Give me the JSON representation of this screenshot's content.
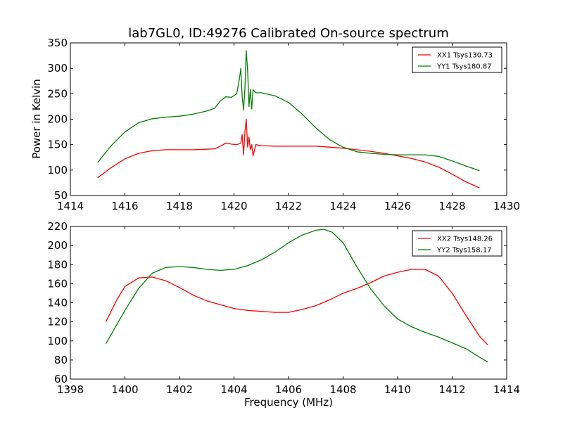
{
  "figure": {
    "title": "lab7GL0, ID:49276 Calibrated On-source spectrum",
    "ylabel": "Power in Kelvin",
    "xlabel": "Frequency (MHz)"
  },
  "chart_data": [
    {
      "type": "line",
      "xlim": [
        1414,
        1430
      ],
      "ylim": [
        50,
        350
      ],
      "xticks": [
        1414,
        1416,
        1418,
        1420,
        1422,
        1424,
        1426,
        1428,
        1430
      ],
      "yticks": [
        50,
        100,
        150,
        200,
        250,
        300,
        350
      ],
      "legend_position": "top-right",
      "grid": false,
      "series": [
        {
          "name": "XX1 Tsys130.73",
          "color": "#ff0000",
          "x": [
            1415,
            1415.5,
            1416,
            1416.5,
            1417,
            1417.5,
            1418,
            1418.5,
            1419,
            1419.3,
            1419.5,
            1419.7,
            1419.9,
            1420.1,
            1420.25,
            1420.3,
            1420.35,
            1420.4,
            1420.45,
            1420.5,
            1420.55,
            1420.6,
            1420.65,
            1420.7,
            1420.8,
            1421,
            1421.5,
            1422,
            1423,
            1424,
            1424.5,
            1425,
            1425.5,
            1426,
            1426.5,
            1427,
            1427.5,
            1428,
            1428.5,
            1429
          ],
          "y": [
            85,
            105,
            122,
            133,
            138,
            140,
            140,
            140,
            141,
            142,
            147,
            153,
            151,
            150,
            153,
            170,
            130,
            175,
            200,
            145,
            165,
            140,
            150,
            128,
            150,
            148,
            147,
            147,
            147,
            143,
            140,
            137,
            133,
            128,
            123,
            116,
            106,
            92,
            77,
            65
          ]
        },
        {
          "name": "YY1 Tsys180.87",
          "color": "#008000",
          "x": [
            1415,
            1415.5,
            1416,
            1416.5,
            1417,
            1417.5,
            1418,
            1418.5,
            1419,
            1419.3,
            1419.5,
            1419.7,
            1419.9,
            1420.1,
            1420.2,
            1420.25,
            1420.3,
            1420.35,
            1420.4,
            1420.45,
            1420.5,
            1420.55,
            1420.6,
            1420.65,
            1420.7,
            1420.8,
            1421,
            1421.5,
            1422,
            1422.5,
            1423,
            1423.5,
            1424,
            1424.5,
            1425,
            1425.5,
            1426,
            1426.5,
            1427,
            1427.5,
            1428,
            1428.5,
            1429
          ],
          "y": [
            115,
            148,
            175,
            193,
            201,
            204,
            206,
            210,
            216,
            222,
            236,
            244,
            243,
            250,
            280,
            300,
            245,
            218,
            260,
            335,
            295,
            225,
            258,
            220,
            258,
            252,
            252,
            246,
            233,
            210,
            183,
            160,
            145,
            136,
            133,
            131,
            130,
            130,
            130,
            127,
            118,
            108,
            99
          ]
        }
      ]
    },
    {
      "type": "line",
      "xlim": [
        1398,
        1414
      ],
      "ylim": [
        60,
        220
      ],
      "xticks": [
        1398,
        1400,
        1402,
        1404,
        1406,
        1408,
        1410,
        1412,
        1414
      ],
      "yticks": [
        60,
        80,
        100,
        120,
        140,
        160,
        180,
        200,
        220
      ],
      "legend_position": "top-right",
      "grid": false,
      "series": [
        {
          "name": "XX2 Tsys148.26",
          "color": "#ff0000",
          "x": [
            1399.3,
            1399.7,
            1400,
            1400.5,
            1401,
            1401.5,
            1402,
            1402.5,
            1403,
            1403.5,
            1404,
            1404.5,
            1405,
            1405.5,
            1406,
            1406.5,
            1407,
            1407.5,
            1408,
            1408.5,
            1409,
            1409.5,
            1410,
            1410.5,
            1411,
            1411.5,
            1412,
            1412.5,
            1413,
            1413.3
          ],
          "y": [
            120,
            143,
            157,
            166,
            167,
            163,
            156,
            148,
            142,
            138,
            134,
            132,
            131,
            130,
            130,
            133,
            137,
            143,
            150,
            155,
            161,
            168,
            172,
            175,
            175,
            168,
            150,
            127,
            105,
            96
          ]
        },
        {
          "name": "YY2 Tsys158.17",
          "color": "#008000",
          "x": [
            1399.3,
            1399.7,
            1400,
            1400.5,
            1401,
            1401.5,
            1402,
            1402.5,
            1403,
            1403.5,
            1404,
            1404.5,
            1405,
            1405.5,
            1406,
            1406.5,
            1407,
            1407.3,
            1407.6,
            1408,
            1408.5,
            1409,
            1409.5,
            1410,
            1410.5,
            1411,
            1411.5,
            1412,
            1412.5,
            1413,
            1413.3
          ],
          "y": [
            97,
            117,
            132,
            155,
            171,
            177,
            178,
            177,
            175,
            174,
            175,
            179,
            185,
            193,
            203,
            211,
            216,
            217,
            214,
            203,
            178,
            155,
            137,
            123,
            115,
            109,
            104,
            98,
            92,
            83,
            78
          ]
        }
      ]
    }
  ]
}
